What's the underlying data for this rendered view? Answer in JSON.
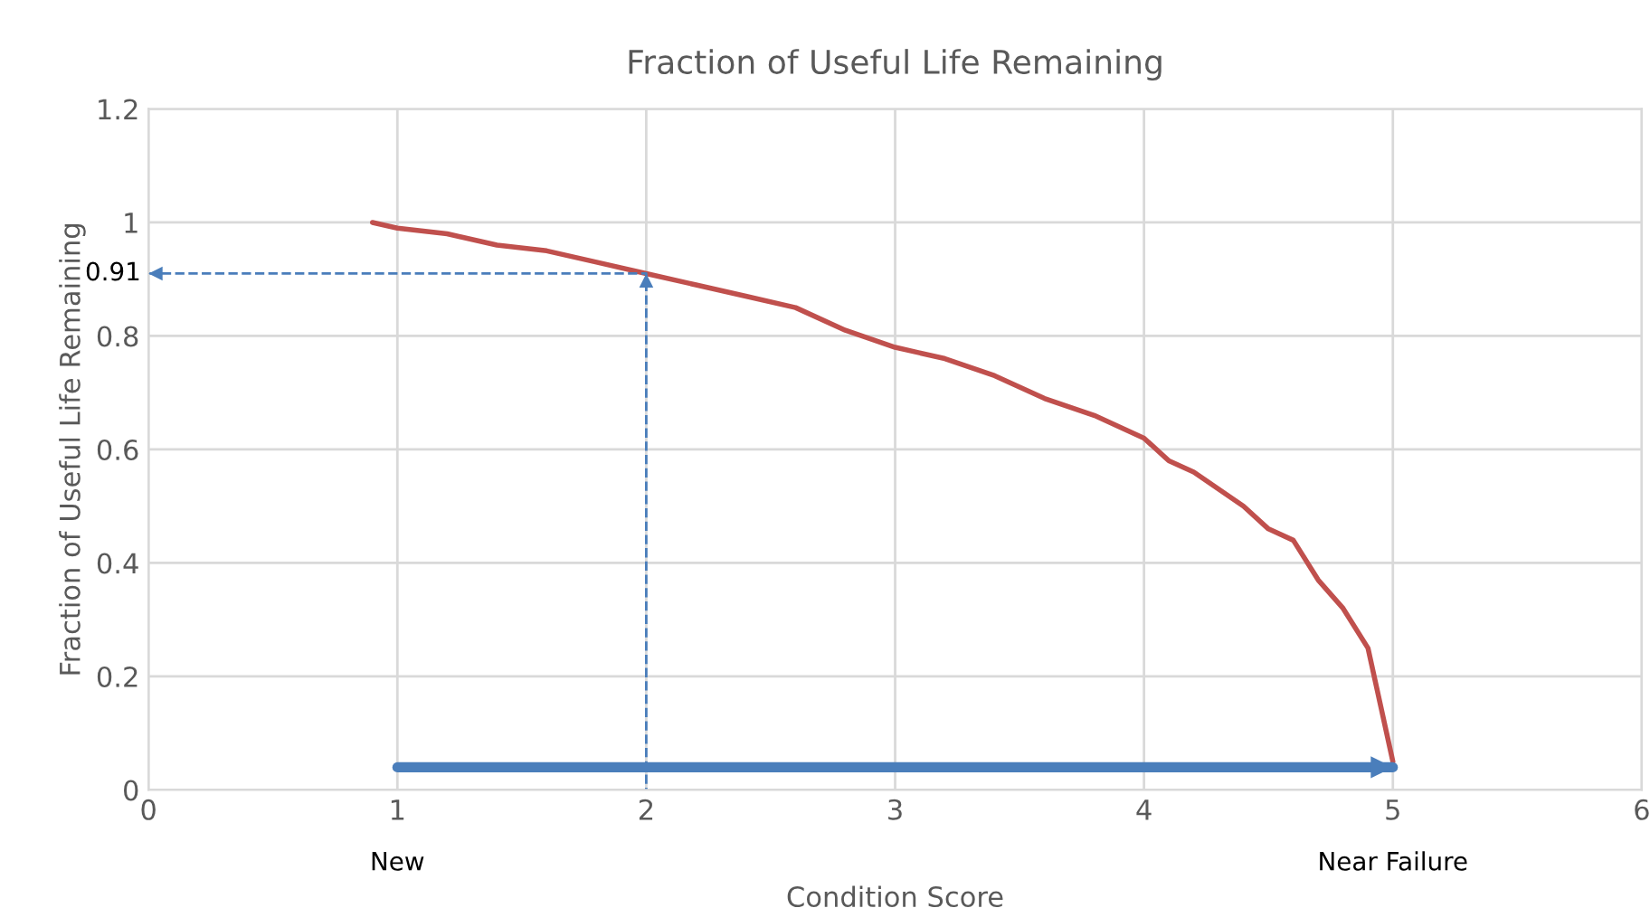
{
  "chart_data": {
    "type": "line",
    "title": "Fraction of Useful Life Remaining",
    "xlabel": "Condition Score",
    "ylabel": "Fraction of Useful Life Remaining",
    "xlim": [
      0,
      6
    ],
    "xticks": [
      0,
      1,
      2,
      3,
      4,
      5,
      6
    ],
    "ylim": [
      0,
      1.2
    ],
    "yticks": [
      0,
      0.2,
      0.4,
      0.6,
      0.8,
      1,
      1.2
    ],
    "grid": true,
    "legend": false,
    "series": [
      {
        "color": "#c0504d",
        "x": [
          0.9,
          1,
          1.2,
          1.4,
          1.6,
          1.8,
          2,
          2.2,
          2.4,
          2.6,
          2.8,
          3,
          3.2,
          3.4,
          3.6,
          3.8,
          4,
          4.1,
          4.2,
          4.4,
          4.5,
          4.6,
          4.7,
          4.8,
          4.9,
          4.95,
          5
        ],
        "values": [
          1.0,
          0.99,
          0.98,
          0.96,
          0.95,
          0.93,
          0.91,
          0.89,
          0.87,
          0.85,
          0.81,
          0.78,
          0.76,
          0.73,
          0.69,
          0.66,
          0.62,
          0.58,
          0.56,
          0.5,
          0.46,
          0.44,
          0.37,
          0.32,
          0.25,
          0.15,
          0.05
        ]
      },
      {
        "color": "#4a7ebb",
        "line_style": "dashed",
        "x": [
          0,
          2,
          2
        ],
        "values": [
          0.91,
          0.91,
          0
        ]
      },
      {
        "color": "#4a7ebb",
        "x": [
          1,
          5
        ],
        "values": [
          0.04,
          0.04
        ]
      }
    ],
    "annotations": [
      {
        "text": "0.91",
        "x": 0,
        "y": 0.91
      },
      "New",
      "Near Failure"
    ]
  }
}
